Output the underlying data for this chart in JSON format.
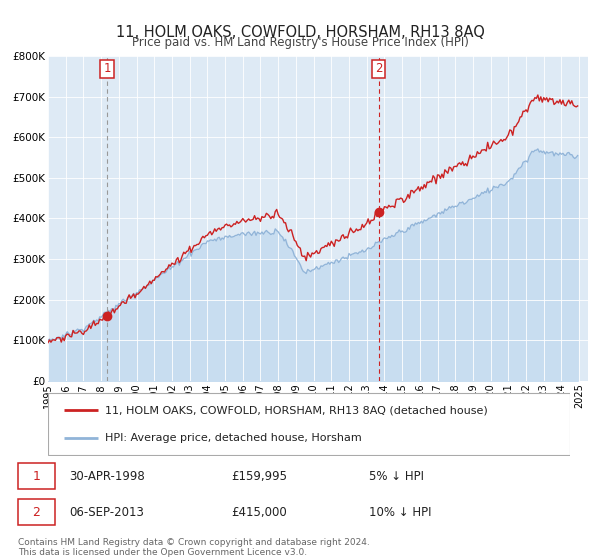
{
  "title": "11, HOLM OAKS, COWFOLD, HORSHAM, RH13 8AQ",
  "subtitle": "Price paid vs. HM Land Registry's House Price Index (HPI)",
  "ylim": [
    0,
    800000
  ],
  "yticks": [
    0,
    100000,
    200000,
    300000,
    400000,
    500000,
    600000,
    700000,
    800000
  ],
  "ytick_labels": [
    "£0",
    "£100K",
    "£200K",
    "£300K",
    "£400K",
    "£500K",
    "£600K",
    "£700K",
    "£800K"
  ],
  "xlim_start": 1995.0,
  "xlim_end": 2025.5,
  "xtick_years": [
    1995,
    1996,
    1997,
    1998,
    1999,
    2000,
    2001,
    2002,
    2003,
    2004,
    2005,
    2006,
    2007,
    2008,
    2009,
    2010,
    2011,
    2012,
    2013,
    2014,
    2015,
    2016,
    2017,
    2018,
    2019,
    2020,
    2021,
    2022,
    2023,
    2024,
    2025
  ],
  "sale1_date": 1998.33,
  "sale1_price": 159995,
  "sale2_date": 2013.68,
  "sale2_price": 415000,
  "hpi_color": "#91b4d8",
  "hpi_fill_color": "#c8ddf0",
  "price_color": "#cc2222",
  "vline1_color": "#999999",
  "vline2_color": "#cc2222",
  "plot_bg_color": "#deeaf5",
  "grid_color": "#ffffff",
  "legend_label_price": "11, HOLM OAKS, COWFOLD, HORSHAM, RH13 8AQ (detached house)",
  "legend_label_hpi": "HPI: Average price, detached house, Horsham",
  "annotation1_date": "30-APR-1998",
  "annotation1_price": "£159,995",
  "annotation1_pct": "5% ↓ HPI",
  "annotation2_date": "06-SEP-2013",
  "annotation2_price": "£415,000",
  "annotation2_pct": "10% ↓ HPI",
  "footer": "Contains HM Land Registry data © Crown copyright and database right 2024.\nThis data is licensed under the Open Government Licence v3.0."
}
